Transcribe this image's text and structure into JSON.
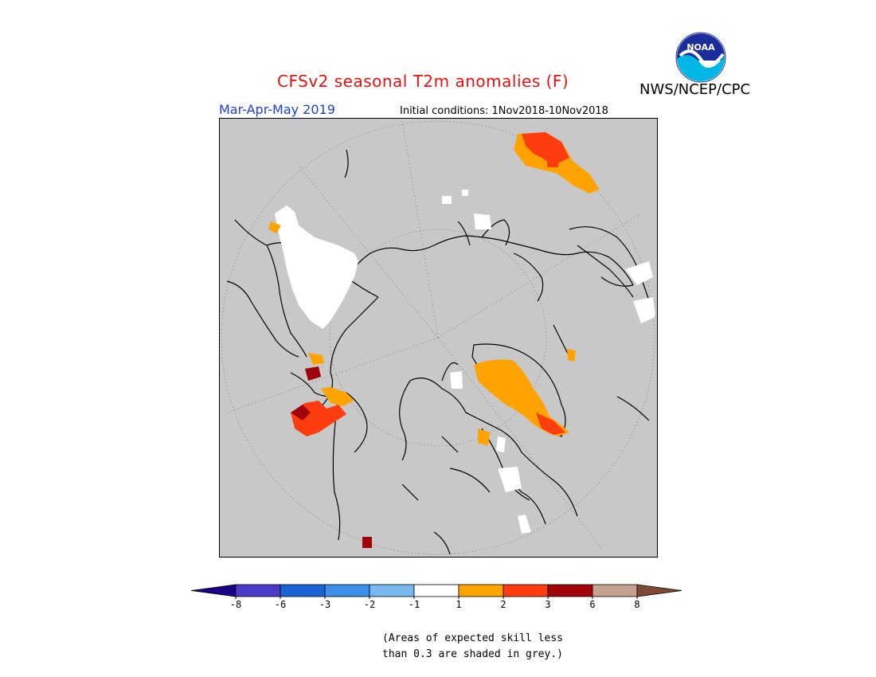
{
  "title": "CFSv2 seasonal T2m anomalies (F)",
  "agency": "NWS/NCEP/CPC",
  "season": "Mar-Apr-May 2019",
  "initial_conditions": "Initial conditions: 1Nov2018-10Nov2018",
  "logo_text": "NOAA",
  "skill_note": {
    "line1": "(Areas of expected skill less",
    "line2": "than 0.3 are shaded in grey.)"
  },
  "colors": {
    "title": "#e8110f",
    "season": "#1b3fe0",
    "map_background": "#c8c8c8",
    "coastline": "#000000"
  },
  "legend": {
    "ticks": [
      "-8",
      "-6",
      "-3",
      "-2",
      "-1",
      "1",
      "2",
      "3",
      "6",
      "8"
    ],
    "bins": [
      {
        "from": null,
        "to": "-8",
        "color": "#1a0086"
      },
      {
        "from": "-8",
        "to": "-6",
        "color": "#4a3bc8"
      },
      {
        "from": "-6",
        "to": "-3",
        "color": "#1a63d6"
      },
      {
        "from": "-3",
        "to": "-2",
        "color": "#3d90ea"
      },
      {
        "from": "-2",
        "to": "-1",
        "color": "#7ab8f0"
      },
      {
        "from": "-1",
        "to": "1",
        "color": "#ffffff"
      },
      {
        "from": "1",
        "to": "2",
        "color": "#fea302"
      },
      {
        "from": "2",
        "to": "3",
        "color": "#fe3d0f"
      },
      {
        "from": "3",
        "to": "6",
        "color": "#a0030a"
      },
      {
        "from": "6",
        "to": "8",
        "color": "#c7a18f"
      },
      {
        "from": "8",
        "to": null,
        "color": "#7e4a35"
      }
    ]
  }
}
